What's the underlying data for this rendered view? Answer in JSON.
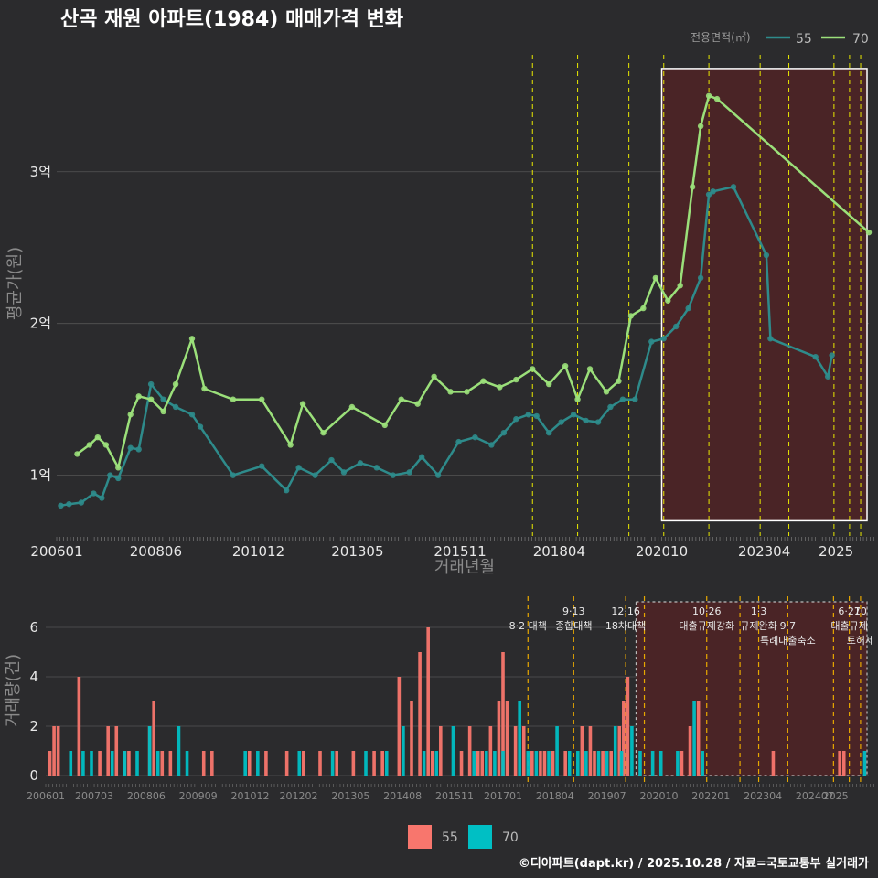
{
  "title": "산곡 재원 아파트(1984) 매매가격 변화",
  "footer": "©디아파트(dapt.kr) / 2025.10.28 / 자료=국토교통부 실거래가",
  "colors": {
    "background": "#2b2b2d",
    "grid": "#555555",
    "series55": "#2e8b8b",
    "series70": "#9be07a",
    "bar55": "#f8766d",
    "bar70": "#00bfc4",
    "policy_line": "#e8e800",
    "highlight_fill": "#4a2426"
  },
  "chart_data": [
    {
      "type": "line",
      "title": "",
      "xlabel": "거래년월",
      "ylabel": "평균가(원)",
      "x_ticks": [
        "200601",
        "200806",
        "201012",
        "201305",
        "201511",
        "201804",
        "202010",
        "202304",
        "2025"
      ],
      "y_ticks": [
        "1억",
        "2억",
        "3억"
      ],
      "y_unit": "억원",
      "xlim": [
        2006.0,
        2025.8
      ],
      "ylim": [
        0.6,
        3.8
      ],
      "legend": {
        "title": "전용면적(㎡)",
        "position": "top-right",
        "entries": [
          "55",
          "70"
        ]
      },
      "policy_dates": [
        2017.6,
        2018.7,
        2019.95,
        2020.8,
        2021.9,
        2023.15,
        2023.85,
        2024.95,
        2025.33,
        2025.6
      ],
      "highlight_range": [
        2020.75,
        2025.8
      ],
      "series": [
        {
          "name": "55",
          "x": [
            2006.1,
            2006.3,
            2006.6,
            2006.9,
            2007.1,
            2007.3,
            2007.5,
            2007.8,
            2008.0,
            2008.3,
            2008.6,
            2008.9,
            2009.3,
            2009.5,
            2010.3,
            2011.0,
            2011.6,
            2011.9,
            2012.3,
            2012.7,
            2013.0,
            2013.4,
            2013.8,
            2014.2,
            2014.6,
            2014.9,
            2015.3,
            2015.8,
            2016.2,
            2016.6,
            2016.9,
            2017.2,
            2017.5,
            2017.7,
            2018.0,
            2018.3,
            2018.6,
            2018.9,
            2019.2,
            2019.5,
            2019.8,
            2020.1,
            2020.5,
            2020.8,
            2021.1,
            2021.4,
            2021.7,
            2021.9,
            2022.0,
            2022.5,
            2023.3,
            2023.4,
            2024.5,
            2024.8,
            2024.9
          ],
          "values": [
            0.8,
            0.81,
            0.82,
            0.88,
            0.85,
            1.0,
            0.98,
            1.18,
            1.17,
            1.6,
            1.5,
            1.45,
            1.4,
            1.32,
            1.0,
            1.06,
            0.9,
            1.05,
            1.0,
            1.1,
            1.02,
            1.08,
            1.05,
            1.0,
            1.02,
            1.12,
            1.0,
            1.22,
            1.25,
            1.2,
            1.28,
            1.37,
            1.4,
            1.39,
            1.28,
            1.35,
            1.4,
            1.36,
            1.35,
            1.45,
            1.5,
            1.5,
            1.88,
            1.9,
            1.98,
            2.1,
            2.3,
            2.85,
            2.87,
            2.9,
            2.45,
            1.9,
            1.78,
            1.65,
            1.79
          ]
        },
        {
          "name": "70",
          "x": [
            2006.5,
            2006.8,
            2007.0,
            2007.2,
            2007.5,
            2007.8,
            2008.0,
            2008.3,
            2008.6,
            2008.9,
            2009.3,
            2009.6,
            2010.3,
            2011.0,
            2011.7,
            2012.0,
            2012.5,
            2013.2,
            2014.0,
            2014.4,
            2014.8,
            2015.2,
            2015.6,
            2016.0,
            2016.4,
            2016.8,
            2017.2,
            2017.6,
            2018.0,
            2018.4,
            2018.7,
            2019.0,
            2019.4,
            2019.7,
            2020.0,
            2020.3,
            2020.6,
            2020.9,
            2021.2,
            2021.5,
            2021.7,
            2021.9,
            2022.1,
            2025.8
          ],
          "values": [
            1.14,
            1.2,
            1.25,
            1.2,
            1.05,
            1.4,
            1.52,
            1.5,
            1.42,
            1.6,
            1.9,
            1.57,
            1.5,
            1.5,
            1.2,
            1.47,
            1.28,
            1.45,
            1.33,
            1.5,
            1.47,
            1.65,
            1.55,
            1.55,
            1.62,
            1.58,
            1.63,
            1.7,
            1.6,
            1.72,
            1.5,
            1.7,
            1.55,
            1.62,
            2.05,
            2.1,
            2.3,
            2.15,
            2.25,
            2.9,
            3.3,
            3.5,
            3.48,
            2.6
          ]
        }
      ]
    },
    {
      "type": "bar",
      "title": "",
      "xlabel": "",
      "ylabel": "거래량(건)",
      "x_ticks": [
        "200601",
        "200703",
        "200806",
        "200909",
        "201012",
        "201202",
        "201305",
        "201408",
        "201511",
        "201701",
        "201804",
        "201907",
        "202010",
        "202201",
        "202304",
        "202407",
        "2025"
      ],
      "y_ticks": [
        "0",
        "2",
        "4",
        "6"
      ],
      "xlim": [
        2006.0,
        2025.8
      ],
      "ylim": [
        0,
        7
      ],
      "legend": {
        "position": "bottom",
        "entries": [
          "55",
          "70"
        ]
      },
      "policy_dates": [
        2017.6,
        2018.7,
        2019.95,
        2020.4,
        2021.9,
        2022.7,
        2023.15,
        2023.85,
        2024.95,
        2025.33,
        2025.6
      ],
      "highlight_range": [
        2020.2,
        2025.8
      ],
      "annotations": [
        {
          "x": 2017.6,
          "text": "8·2 대책",
          "row": 1
        },
        {
          "x": 2018.7,
          "text": "9·13",
          "row": 0
        },
        {
          "x": 2018.7,
          "text": "종합대책",
          "row": 1
        },
        {
          "x": 2019.95,
          "text": "12·16",
          "row": 0
        },
        {
          "x": 2019.95,
          "text": "18차대책",
          "row": 1
        },
        {
          "x": 2021.9,
          "text": "10·26",
          "row": 0
        },
        {
          "x": 2021.9,
          "text": "대출규제강화",
          "row": 1
        },
        {
          "x": 2023.15,
          "text": "1·3",
          "row": 0
        },
        {
          "x": 2023.15,
          "text": "규제완화",
          "row": 1
        },
        {
          "x": 2023.85,
          "text": "9·7",
          "row": 1
        },
        {
          "x": 2023.85,
          "text": "특례대출축소",
          "row": 2
        },
        {
          "x": 2025.33,
          "text": "6·27",
          "row": 0
        },
        {
          "x": 2025.33,
          "text": "대출규제",
          "row": 1
        },
        {
          "x": 2025.6,
          "text": "10",
          "row": 0
        },
        {
          "x": 2025.6,
          "text": "토허제",
          "row": 2
        }
      ],
      "series": [
        {
          "name": "55",
          "x": [
            2006.1,
            2006.2,
            2006.3,
            2006.8,
            2007.3,
            2007.5,
            2007.7,
            2007.9,
            2008.0,
            2008.5,
            2008.6,
            2008.8,
            2009.0,
            2009.8,
            2010.0,
            2010.9,
            2011.3,
            2011.8,
            2012.2,
            2012.6,
            2013.0,
            2013.4,
            2013.9,
            2014.1,
            2014.5,
            2014.8,
            2015.0,
            2015.2,
            2015.3,
            2015.5,
            2016.0,
            2016.2,
            2016.4,
            2016.5,
            2016.7,
            2016.9,
            2017.0,
            2017.1,
            2017.3,
            2017.5,
            2017.7,
            2017.9,
            2018.0,
            2018.2,
            2018.5,
            2018.9,
            2019.1,
            2019.2,
            2019.4,
            2019.6,
            2019.8,
            2019.9,
            2020.0,
            2021.3,
            2021.5,
            2021.7,
            2023.5,
            2025.1,
            2025.2
          ],
          "values": [
            1,
            2,
            2,
            4,
            1,
            2,
            2,
            1,
            1,
            2,
            3,
            1,
            1,
            1,
            1,
            1,
            1,
            1,
            1,
            1,
            1,
            1,
            1,
            1,
            4,
            3,
            5,
            6,
            1,
            2,
            1,
            2,
            1,
            1,
            2,
            3,
            5,
            3,
            2,
            2,
            1,
            1,
            1,
            1,
            1,
            2,
            2,
            1,
            1,
            1,
            2,
            3,
            4,
            1,
            2,
            3,
            1,
            1,
            1
          ]
        },
        {
          "name": "70",
          "x": [
            2006.6,
            2006.9,
            2007.1,
            2007.6,
            2007.9,
            2008.2,
            2008.5,
            2008.7,
            2009.2,
            2009.4,
            2010.8,
            2011.1,
            2012.1,
            2012.9,
            2013.7,
            2014.2,
            2014.6,
            2015.1,
            2015.4,
            2015.8,
            2016.3,
            2016.6,
            2016.8,
            2017.0,
            2017.4,
            2017.6,
            2017.8,
            2018.1,
            2018.3,
            2018.6,
            2018.8,
            2019.0,
            2019.3,
            2019.5,
            2019.7,
            2019.85,
            2020.1,
            2020.3,
            2020.6,
            2020.8,
            2021.2,
            2021.6,
            2021.8,
            2025.7
          ],
          "values": [
            1,
            1,
            1,
            1,
            1,
            1,
            2,
            1,
            2,
            1,
            1,
            1,
            1,
            1,
            1,
            1,
            2,
            1,
            1,
            2,
            1,
            1,
            1,
            1,
            3,
            1,
            1,
            1,
            2,
            1,
            1,
            1,
            1,
            1,
            2,
            1,
            2,
            1,
            1,
            1,
            1,
            3,
            1,
            1
          ]
        }
      ]
    }
  ]
}
